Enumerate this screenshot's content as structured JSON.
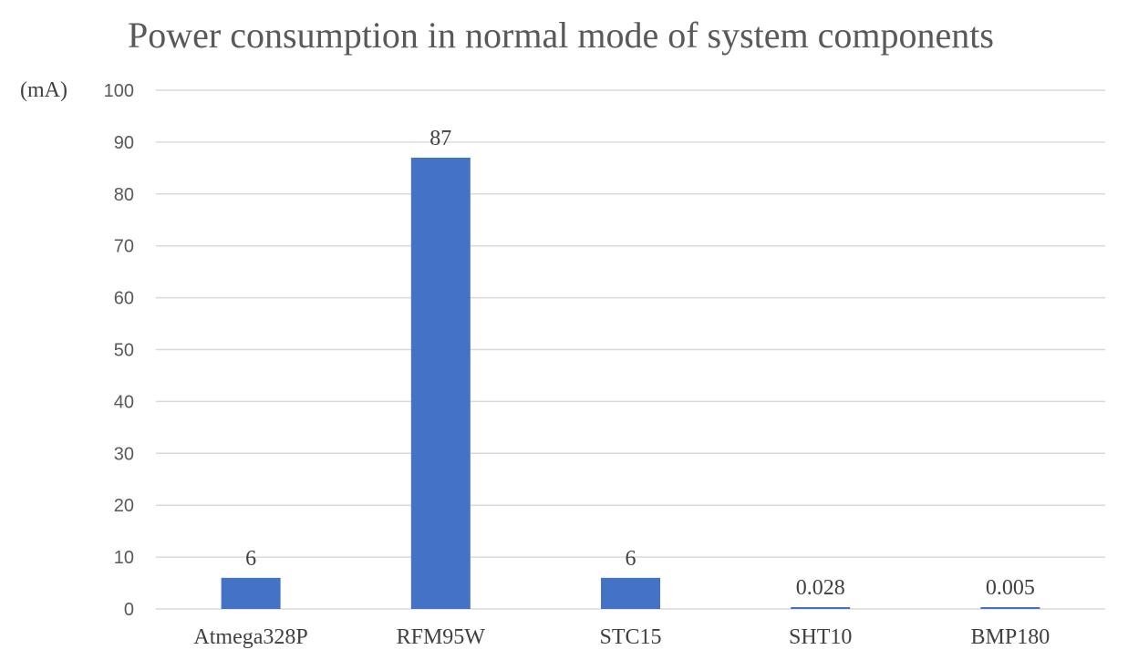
{
  "chart_data": {
    "type": "bar",
    "title": "Power consumption in normal mode of system components",
    "ylabel": "(mA)",
    "xlabel": "",
    "categories": [
      "Atmega328P",
      "RFM95W",
      "STC15",
      "SHT10",
      "BMP180"
    ],
    "values": [
      6,
      87,
      6,
      0.028,
      0.005
    ],
    "data_labels": [
      "6",
      "87",
      "6",
      "0.028",
      "0.005"
    ],
    "ylim": [
      0,
      100
    ],
    "yticks": [
      0,
      10,
      20,
      30,
      40,
      50,
      60,
      70,
      80,
      90,
      100
    ],
    "grid": true,
    "legend": "none",
    "bar_color": "#4472c4"
  }
}
